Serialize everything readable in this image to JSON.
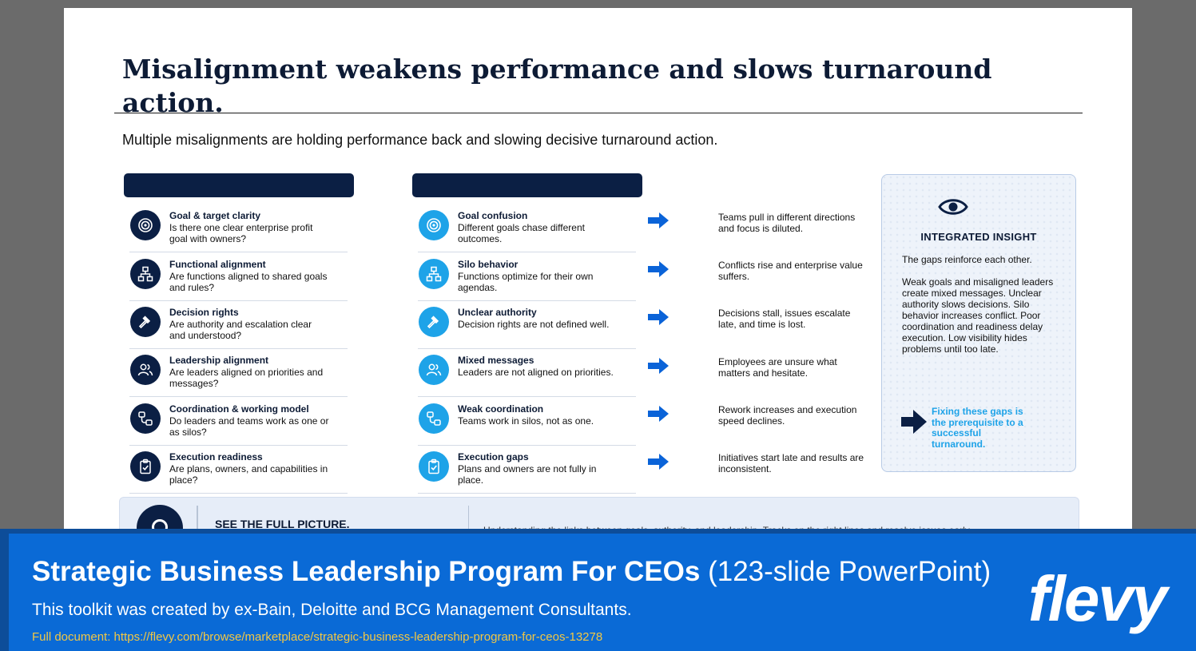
{
  "slide": {
    "title": "Misalignment weakens performance and slows turnaround action.",
    "subtitle": "Multiple misalignments are holding performance back and slowing decisive turnaround action."
  },
  "drivers": [
    {
      "icon": "target-icon",
      "title": "Goal & target clarity",
      "desc": "Is there one clear enterprise profit goal with owners?"
    },
    {
      "icon": "org-chart-icon",
      "title": "Functional alignment",
      "desc": "Are functions aligned to shared goals and rules?"
    },
    {
      "icon": "gavel-icon",
      "title": "Decision rights",
      "desc": "Are authority and escalation clear and understood?"
    },
    {
      "icon": "people-icon",
      "title": "Leadership alignment",
      "desc": "Are leaders aligned on priorities and messages?"
    },
    {
      "icon": "workflow-icon",
      "title": "Coordination & working model",
      "desc": "Do leaders and teams work as one or as silos?"
    },
    {
      "icon": "clipboard-check-icon",
      "title": "Execution readiness",
      "desc": "Are plans, owners, and capabilities in place?"
    }
  ],
  "symptoms": [
    {
      "icon": "target-icon",
      "title": "Goal confusion",
      "desc": "Different goals chase different outcomes."
    },
    {
      "icon": "org-chart-icon",
      "title": "Silo behavior",
      "desc": "Functions optimize for their own agendas."
    },
    {
      "icon": "gavel-icon",
      "title": "Unclear authority",
      "desc": "Decision rights are not defined well."
    },
    {
      "icon": "people-icon",
      "title": "Mixed messages",
      "desc": "Leaders are not aligned on priorities."
    },
    {
      "icon": "workflow-icon",
      "title": "Weak coordination",
      "desc": "Teams work in silos, not as one."
    },
    {
      "icon": "clipboard-check-icon",
      "title": "Execution gaps",
      "desc": "Plans and owners are not fully in place."
    }
  ],
  "impacts": [
    "Teams pull in different directions and focus is diluted.",
    "Conflicts rise and enterprise value suffers.",
    "Decisions stall, issues escalate late, and time is lost.",
    "Employees are unsure what matters and hesitate.",
    "Rework increases and execution speed declines.",
    "Initiatives start late and results are inconsistent."
  ],
  "insight": {
    "icon": "eye-icon",
    "heading": "INTEGRATED INSIGHT",
    "lead": "The gaps reinforce each other.",
    "body": "Weak goals and misaligned leaders create mixed messages. Unclear authority slows decisions. Silo behavior increases conflict. Poor coordination and readiness delay execution. Low visibility hides problems until too late.",
    "cta": "Fixing these gaps is the prerequisite to a successful turnaround."
  },
  "band": {
    "title": "SEE THE FULL PICTURE.",
    "text": "Understanding the links between goals, authority, and leadership. Tracks on the right lines and resolve issues early."
  },
  "footer": {
    "title_bold": "Strategic Business Leadership Program For CEOs",
    "title_rest": " (123-slide PowerPoint)",
    "subtitle": "This toolkit was created by ex-Bain, Deloitte and BCG Management Consultants.",
    "link": "Full document: https://flevy.com/browse/marketplace/strategic-business-leadership-program-for-ceos-13278",
    "brand": "flevy"
  },
  "colors": {
    "navy": "#0b1f44",
    "accent_blue": "#1ea3e8",
    "arrow_blue": "#0a63d8",
    "footer_blue": "#0a6ad6",
    "link_yellow": "#f2c744"
  }
}
